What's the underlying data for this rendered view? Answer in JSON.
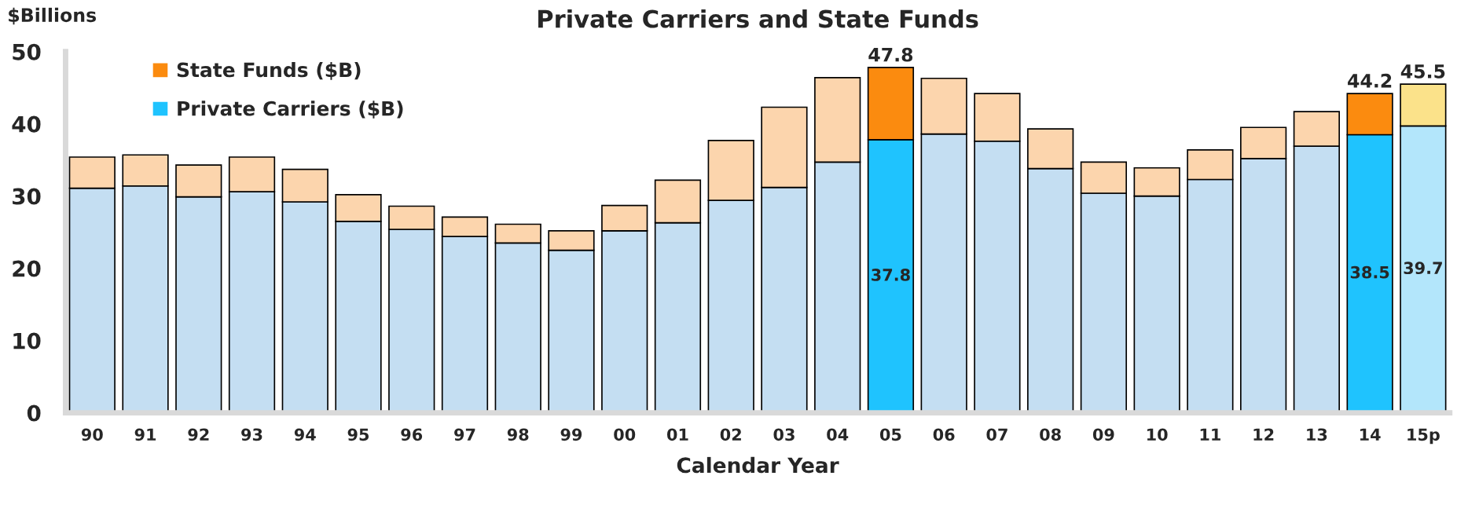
{
  "chart_data": {
    "type": "bar",
    "title": "Private Carriers and State Funds",
    "xlabel": "Calendar Year",
    "ylabel": "$Billions",
    "categories": [
      "90",
      "91",
      "92",
      "93",
      "94",
      "95",
      "96",
      "97",
      "98",
      "99",
      "00",
      "01",
      "02",
      "03",
      "04",
      "05",
      "06",
      "07",
      "08",
      "09",
      "10",
      "11",
      "12",
      "13",
      "14",
      "15p"
    ],
    "stacked": true,
    "legend": "top left",
    "grid": false,
    "ylim": [
      0,
      50
    ],
    "yticks": [
      0,
      10,
      20,
      30,
      40,
      50
    ],
    "series": [
      {
        "name": "Private Carriers ($B)",
        "color": "#1fc3fe",
        "colors": [
          "#c4def2",
          "#c4def2",
          "#c4def2",
          "#c4def2",
          "#c4def2",
          "#c4def2",
          "#c4def2",
          "#c4def2",
          "#c4def2",
          "#c4def2",
          "#c4def2",
          "#c4def2",
          "#c4def2",
          "#c4def2",
          "#c4def2",
          "#1fc3fe",
          "#c4def2",
          "#c4def2",
          "#c4def2",
          "#c4def2",
          "#c4def2",
          "#c4def2",
          "#c4def2",
          "#c4def2",
          "#1fc3fe",
          "#b3e6fb"
        ],
        "values": [
          31.1,
          31.4,
          29.9,
          30.6,
          29.2,
          26.5,
          25.4,
          24.4,
          23.5,
          22.5,
          25.2,
          26.3,
          29.4,
          31.2,
          34.7,
          37.8,
          38.6,
          37.6,
          33.8,
          30.4,
          30.0,
          32.3,
          35.2,
          36.9,
          38.5,
          39.7
        ],
        "value_labels": [
          null,
          null,
          null,
          null,
          null,
          null,
          null,
          null,
          null,
          null,
          null,
          null,
          null,
          null,
          null,
          "37.8",
          null,
          null,
          null,
          null,
          null,
          null,
          null,
          null,
          "38.5",
          "39.7"
        ]
      },
      {
        "name": "State Funds ($B)",
        "color": "#fb8b0f",
        "colors": [
          "#fcd5ad",
          "#fcd5ad",
          "#fcd5ad",
          "#fcd5ad",
          "#fcd5ad",
          "#fcd5ad",
          "#fcd5ad",
          "#fcd5ad",
          "#fcd5ad",
          "#fcd5ad",
          "#fcd5ad",
          "#fcd5ad",
          "#fcd5ad",
          "#fcd5ad",
          "#fcd5ad",
          "#fb8b0f",
          "#fcd5ad",
          "#fcd5ad",
          "#fcd5ad",
          "#fcd5ad",
          "#fcd5ad",
          "#fcd5ad",
          "#fcd5ad",
          "#fcd5ad",
          "#fb8b0f",
          "#fbe28a"
        ],
        "values": [
          4.3,
          4.3,
          4.4,
          4.8,
          4.5,
          3.7,
          3.2,
          2.7,
          2.6,
          2.7,
          3.5,
          5.9,
          8.3,
          11.1,
          11.7,
          10.0,
          7.7,
          6.6,
          5.5,
          4.3,
          3.9,
          4.1,
          4.3,
          4.8,
          5.7,
          5.8
        ]
      }
    ],
    "totals": [
      null,
      null,
      null,
      null,
      null,
      null,
      null,
      null,
      null,
      null,
      null,
      null,
      null,
      null,
      null,
      "47.8",
      null,
      null,
      null,
      null,
      null,
      null,
      null,
      null,
      "44.2",
      "45.5"
    ]
  }
}
